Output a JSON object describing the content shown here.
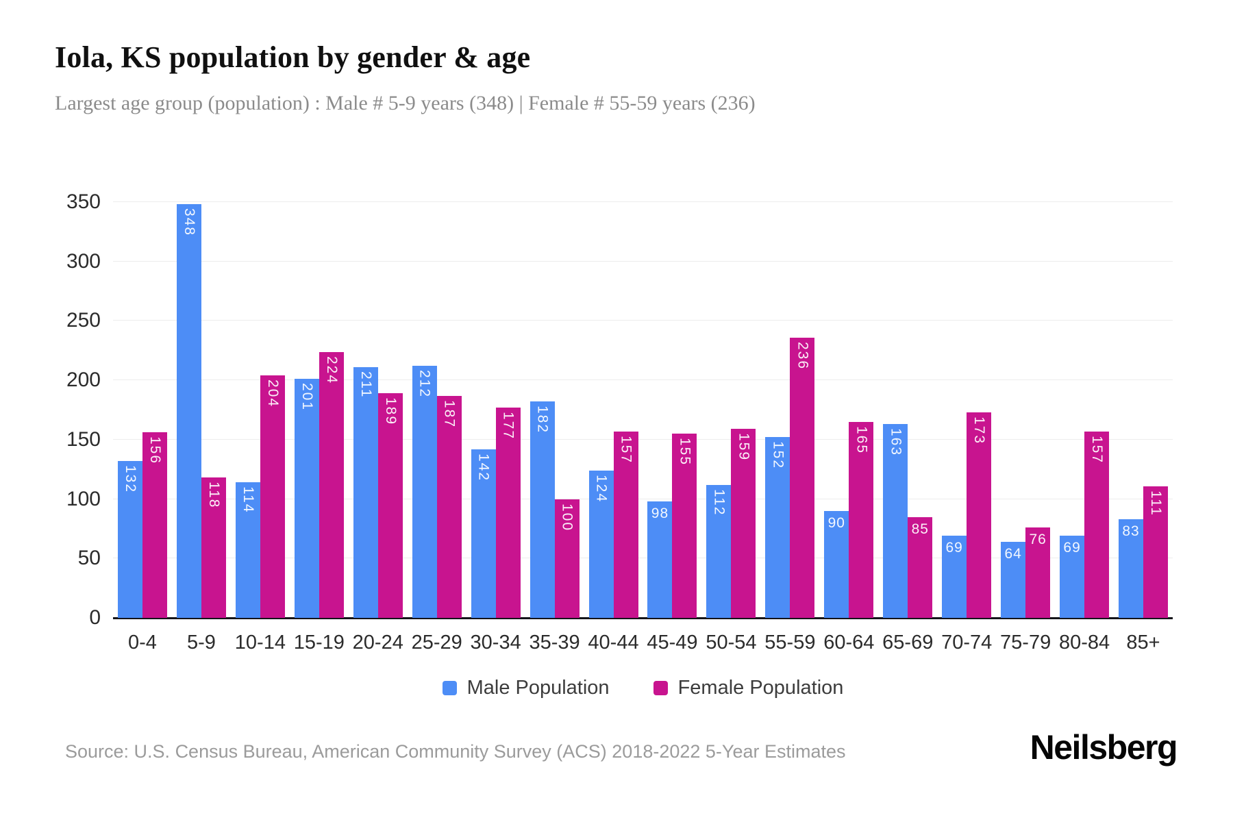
{
  "header": {
    "title": "Iola, KS population by gender & age",
    "subtitle": "Largest age group (population) : Male # 5-9 years (348) | Female # 55-59 years (236)"
  },
  "chart_data": {
    "type": "bar",
    "title": "Iola, KS population by gender & age",
    "categories": [
      "0-4",
      "5-9",
      "10-14",
      "15-19",
      "20-24",
      "25-29",
      "30-34",
      "35-39",
      "40-44",
      "45-49",
      "50-54",
      "55-59",
      "60-64",
      "65-69",
      "70-74",
      "75-79",
      "80-84",
      "85+"
    ],
    "series": [
      {
        "name": "Male Population",
        "color": "#4D8DF6",
        "values": [
          132,
          348,
          114,
          201,
          211,
          212,
          142,
          182,
          124,
          98,
          112,
          152,
          90,
          163,
          69,
          64,
          69,
          83
        ]
      },
      {
        "name": "Female Population",
        "color": "#C8148F",
        "values": [
          156,
          118,
          204,
          224,
          189,
          187,
          177,
          100,
          157,
          155,
          159,
          236,
          165,
          85,
          173,
          76,
          157,
          111
        ]
      }
    ],
    "xlabel": "",
    "ylabel": "",
    "ylim": [
      0,
      350
    ],
    "yticks": [
      0,
      50,
      100,
      150,
      200,
      250,
      300,
      350
    ],
    "grid": true,
    "legend_position": "bottom",
    "value_label_style": "white labels inside bar tops; 3-digit values rotated vertical, 2-digit horizontal"
  },
  "footer": {
    "source": "Source: U.S. Census Bureau, American Community Survey (ACS) 2018-2022 5-Year Estimates",
    "logo": "Neilsberg"
  }
}
